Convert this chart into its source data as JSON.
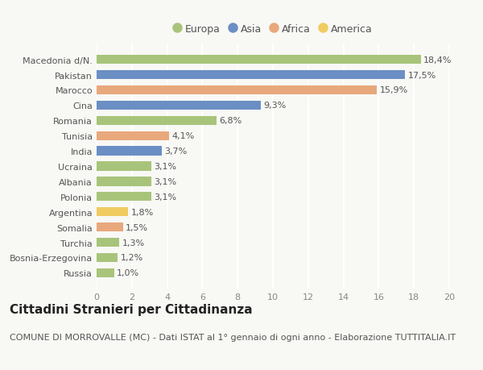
{
  "countries": [
    "Macedonia d/N.",
    "Pakistan",
    "Marocco",
    "Cina",
    "Romania",
    "Tunisia",
    "India",
    "Ucraina",
    "Albania",
    "Polonia",
    "Argentina",
    "Somalia",
    "Turchia",
    "Bosnia-Erzegovina",
    "Russia"
  ],
  "values": [
    18.4,
    17.5,
    15.9,
    9.3,
    6.8,
    4.1,
    3.7,
    3.1,
    3.1,
    3.1,
    1.8,
    1.5,
    1.3,
    1.2,
    1.0
  ],
  "continents": [
    "Europa",
    "Asia",
    "Africa",
    "Asia",
    "Europa",
    "Africa",
    "Asia",
    "Europa",
    "Europa",
    "Europa",
    "America",
    "Africa",
    "Europa",
    "Europa",
    "Europa"
  ],
  "colors": {
    "Europa": "#a8c47a",
    "Asia": "#6b8fc4",
    "Africa": "#e8a87c",
    "America": "#f0cc60"
  },
  "legend_order": [
    "Europa",
    "Asia",
    "Africa",
    "America"
  ],
  "xlim": [
    0,
    20
  ],
  "xticks": [
    0,
    2,
    4,
    6,
    8,
    10,
    12,
    14,
    16,
    18,
    20
  ],
  "title": "Cittadini Stranieri per Cittadinanza",
  "subtitle": "COMUNE DI MORROVALLE (MC) - Dati ISTAT al 1° gennaio di ogni anno - Elaborazione TUTTITALIA.IT",
  "background_color": "#f8f8f5",
  "bar_height": 0.6,
  "title_fontsize": 11,
  "subtitle_fontsize": 8,
  "label_fontsize": 8,
  "tick_fontsize": 8,
  "legend_fontsize": 9
}
